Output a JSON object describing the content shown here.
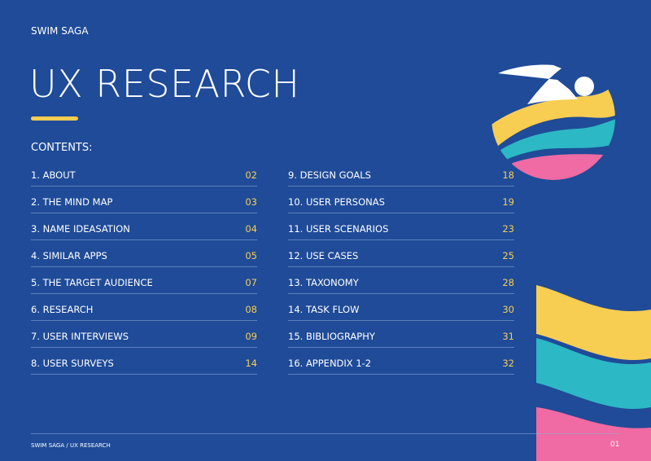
{
  "header": {
    "brand": "SWIM SAGA",
    "title": "UX RESEARCH"
  },
  "contents": {
    "label": "CONTENTS:",
    "columns": [
      [
        {
          "label": "1. ABOUT",
          "page": "02"
        },
        {
          "label": "2. THE MIND MAP",
          "page": "03"
        },
        {
          "label": "3. NAME IDEASATION",
          "page": "04"
        },
        {
          "label": "4. SIMILAR APPS",
          "page": "05"
        },
        {
          "label": "5. THE TARGET AUDIENCE",
          "page": "07"
        },
        {
          "label": "6. RESEARCH",
          "page": "08"
        },
        {
          "label": "7. USER INTERVIEWS",
          "page": "09"
        },
        {
          "label": "8. USER SURVEYS",
          "page": "14"
        }
      ],
      [
        {
          "label": "9. DESIGN GOALS",
          "page": "18"
        },
        {
          "label": "10. USER PERSONAS",
          "page": "19"
        },
        {
          "label": "11. USER SCENARIOS",
          "page": "23"
        },
        {
          "label": "12. USE CASES",
          "page": "25"
        },
        {
          "label": "13. TAXONOMY",
          "page": "28"
        },
        {
          "label": "14. TASK FLOW",
          "page": "30"
        },
        {
          "label": "15. BIBLIOGRAPHY",
          "page": "31"
        },
        {
          "label": "16. APPENDIX 1-2",
          "page": "32"
        }
      ]
    ]
  },
  "footer": {
    "text": "SWIM SAGA / UX RESEARCH",
    "page": "01"
  }
}
